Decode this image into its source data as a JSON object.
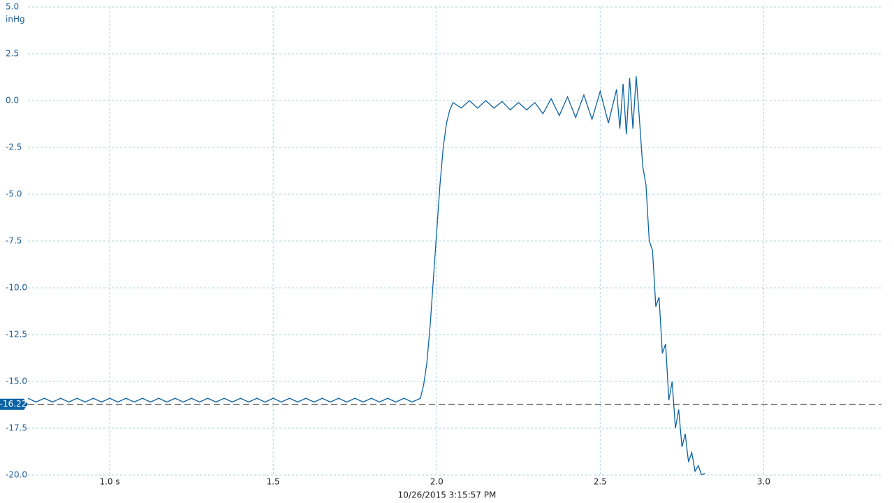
{
  "chart_data": {
    "type": "line",
    "y_label": "inHg",
    "x_label": "10/26/2015 3:15:57 PM",
    "xlim": [
      0.75,
      3.36
    ],
    "ylim": [
      -20,
      5
    ],
    "xticks": [
      {
        "value": 1,
        "label": "1.0 s"
      },
      1.5,
      {
        "value": 2,
        "label": "2.0"
      },
      2.5,
      {
        "value": 3,
        "label": "3.0"
      }
    ],
    "yticks": [
      {
        "value": 5,
        "label": "5.0"
      },
      2.5,
      {
        "value": 0,
        "label": "0.0"
      },
      -2.5,
      {
        "value": -5,
        "label": "-5.0"
      },
      -7.5,
      {
        "value": -10,
        "label": "-10.0"
      },
      -12.5,
      {
        "value": -15,
        "label": "-15.0"
      },
      -17.5,
      {
        "value": -20,
        "label": "-20.0"
      }
    ],
    "grid": true,
    "reference": {
      "value": -16.22,
      "label": "-16.22"
    },
    "series": [
      {
        "color": "#0b62a4",
        "x": [
          0.75,
          0.775,
          0.8,
          0.825,
          0.85,
          0.875,
          0.9,
          0.925,
          0.95,
          0.975,
          1.0,
          1.025,
          1.05,
          1.075,
          1.1,
          1.125,
          1.15,
          1.175,
          1.2,
          1.225,
          1.25,
          1.275,
          1.3,
          1.325,
          1.35,
          1.375,
          1.4,
          1.425,
          1.45,
          1.475,
          1.5,
          1.525,
          1.55,
          1.575,
          1.6,
          1.625,
          1.65,
          1.675,
          1.7,
          1.725,
          1.75,
          1.775,
          1.8,
          1.825,
          1.85,
          1.875,
          1.9,
          1.925,
          1.95,
          1.96,
          1.97,
          1.98,
          1.99,
          2.0,
          2.01,
          2.02,
          2.03,
          2.04,
          2.05,
          2.075,
          2.1,
          2.125,
          2.15,
          2.175,
          2.2,
          2.225,
          2.25,
          2.275,
          2.3,
          2.325,
          2.35,
          2.375,
          2.4,
          2.425,
          2.45,
          2.475,
          2.5,
          2.525,
          2.55,
          2.56,
          2.57,
          2.58,
          2.59,
          2.6,
          2.61,
          2.62,
          2.63,
          2.64,
          2.65,
          2.66,
          2.67,
          2.68,
          2.69,
          2.7,
          2.71,
          2.72,
          2.73,
          2.74,
          2.75,
          2.76,
          2.77,
          2.78,
          2.79,
          2.8,
          2.81,
          2.82
        ],
        "values": [
          -15.9,
          -16.1,
          -15.9,
          -16.1,
          -15.9,
          -16.1,
          -15.9,
          -16.1,
          -15.9,
          -16.1,
          -15.9,
          -16.1,
          -15.9,
          -16.1,
          -15.9,
          -16.1,
          -15.9,
          -16.1,
          -15.9,
          -16.1,
          -15.9,
          -16.1,
          -15.9,
          -16.1,
          -15.9,
          -16.1,
          -15.9,
          -16.1,
          -15.9,
          -16.1,
          -15.9,
          -16.1,
          -15.9,
          -16.1,
          -15.9,
          -16.1,
          -15.9,
          -16.1,
          -15.9,
          -16.1,
          -15.9,
          -16.1,
          -15.9,
          -16.1,
          -15.9,
          -16.1,
          -15.9,
          -16.1,
          -15.9,
          -15.2,
          -14.0,
          -12.0,
          -9.5,
          -7.0,
          -4.5,
          -2.5,
          -1.2,
          -0.5,
          -0.1,
          -0.4,
          0.0,
          -0.4,
          0.0,
          -0.4,
          -0.05,
          -0.5,
          -0.1,
          -0.5,
          -0.1,
          -0.7,
          0.1,
          -0.8,
          0.2,
          -0.9,
          0.3,
          -1.0,
          0.5,
          -1.2,
          0.6,
          -1.5,
          0.9,
          -1.8,
          1.2,
          -1.5,
          1.3,
          -1.0,
          -3.5,
          -4.5,
          -7.5,
          -8.0,
          -11.0,
          -10.5,
          -13.5,
          -13.0,
          -16.0,
          -15.0,
          -17.5,
          -16.5,
          -18.5,
          -17.8,
          -19.3,
          -18.8,
          -19.8,
          -19.5,
          -20.0,
          -19.9
        ]
      }
    ]
  }
}
